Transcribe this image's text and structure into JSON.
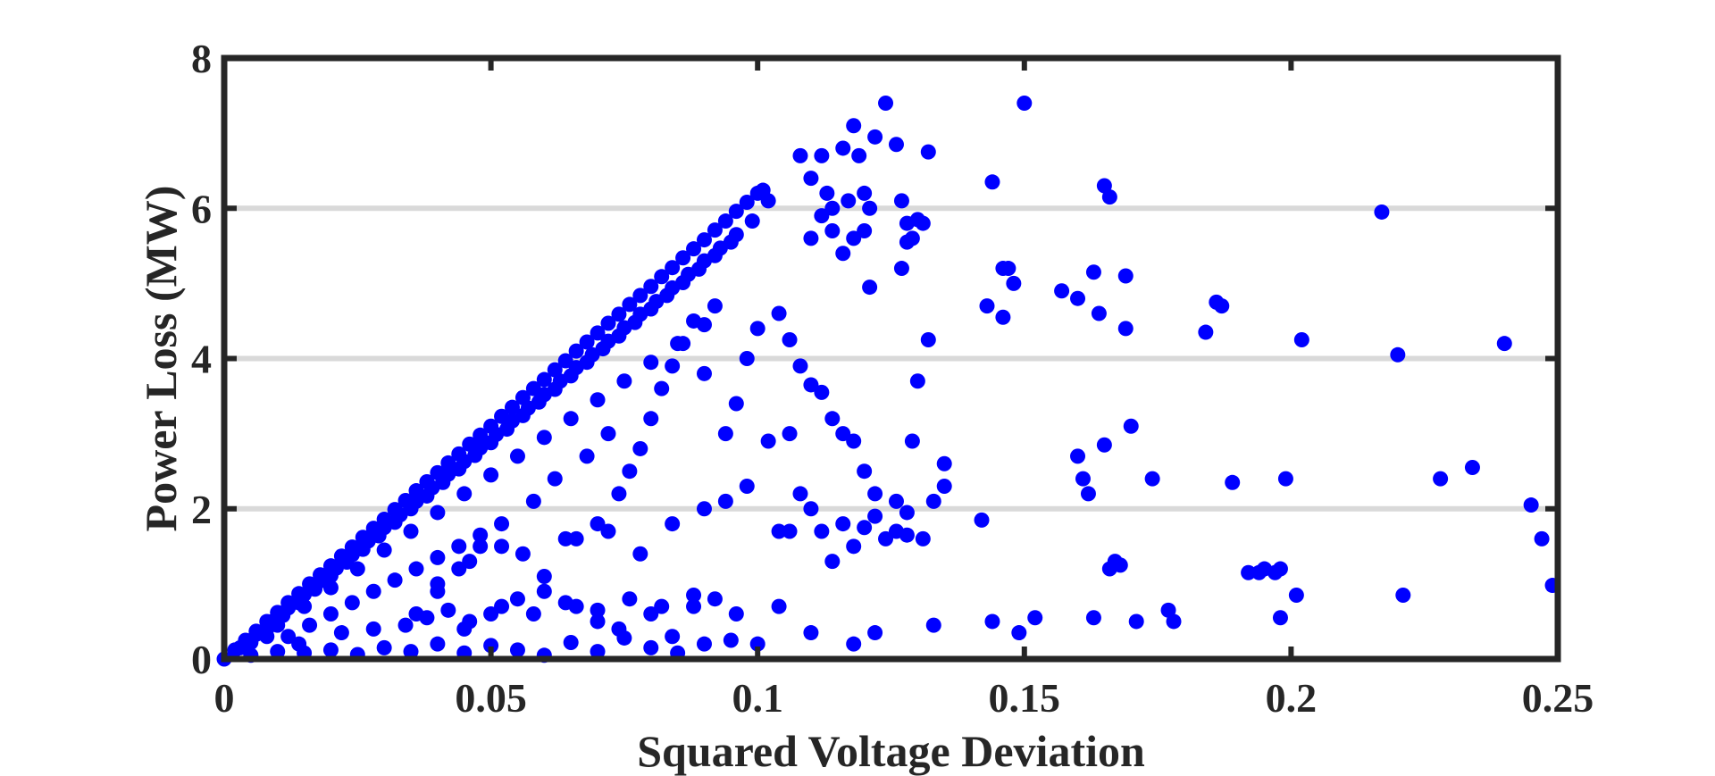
{
  "chart_data": {
    "type": "scatter",
    "title": "",
    "xlabel": "Squared Voltage Deviation",
    "ylabel": "Power Loss (MW)",
    "xlim": [
      0,
      0.25
    ],
    "ylim": [
      0,
      8
    ],
    "xticks": [
      0,
      0.05,
      0.1,
      0.15,
      0.2,
      0.25
    ],
    "xtick_labels": [
      "0",
      "0.05",
      "0.1",
      "0.15",
      "0.2",
      "0.25"
    ],
    "yticks": [
      0,
      2,
      4,
      6,
      8
    ],
    "ytick_labels": [
      "0",
      "2",
      "4",
      "6",
      "8"
    ],
    "grid": "horizontal",
    "legend": "none",
    "marker_color": "#0000ff",
    "grid_color": "#d9d9d9",
    "axis_color": "#262626",
    "series": [
      {
        "values_description_note": "",
        "x": [
          0.0,
          0.002,
          0.004,
          0.006,
          0.008,
          0.01,
          0.012,
          0.014,
          0.016,
          0.018,
          0.02,
          0.022,
          0.024,
          0.026,
          0.028,
          0.03,
          0.032,
          0.034,
          0.036,
          0.038,
          0.04,
          0.042,
          0.044,
          0.046,
          0.048,
          0.05,
          0.052,
          0.054,
          0.056,
          0.058,
          0.06,
          0.062,
          0.064,
          0.066,
          0.068,
          0.07,
          0.072,
          0.074,
          0.076,
          0.078,
          0.08,
          0.082,
          0.084,
          0.086,
          0.088,
          0.09,
          0.092,
          0.094,
          0.096,
          0.098,
          0.1,
          0.101,
          0.102,
          0.003,
          0.006,
          0.009,
          0.012,
          0.015,
          0.018,
          0.021,
          0.024,
          0.027,
          0.03,
          0.033,
          0.036,
          0.039,
          0.042,
          0.045,
          0.048,
          0.051,
          0.054,
          0.057,
          0.06,
          0.063,
          0.066,
          0.069,
          0.072,
          0.075,
          0.078,
          0.081,
          0.084,
          0.087,
          0.09,
          0.093,
          0.096,
          0.099,
          0.005,
          0.008,
          0.011,
          0.014,
          0.017,
          0.02,
          0.023,
          0.026,
          0.029,
          0.032,
          0.035,
          0.038,
          0.041,
          0.044,
          0.047,
          0.05,
          0.053,
          0.056,
          0.059,
          0.062,
          0.065,
          0.068,
          0.071,
          0.074,
          0.077,
          0.08,
          0.083,
          0.086,
          0.089,
          0.092,
          0.095,
          0.01,
          0.015,
          0.02,
          0.025,
          0.03,
          0.035,
          0.04,
          0.045,
          0.05,
          0.055,
          0.06,
          0.065,
          0.07,
          0.075,
          0.08,
          0.085,
          0.09,
          0.012,
          0.016,
          0.02,
          0.024,
          0.028,
          0.032,
          0.036,
          0.04,
          0.044,
          0.048,
          0.005,
          0.01,
          0.015,
          0.02,
          0.025,
          0.03,
          0.035,
          0.04,
          0.045,
          0.05,
          0.055,
          0.06,
          0.065,
          0.07,
          0.075,
          0.08,
          0.085,
          0.09,
          0.095,
          0.008,
          0.014,
          0.022,
          0.028,
          0.034,
          0.038,
          0.042,
          0.046,
          0.052,
          0.058,
          0.064,
          0.07,
          0.076,
          0.082,
          0.088,
          0.036,
          0.04,
          0.044,
          0.048,
          0.052,
          0.056,
          0.058,
          0.062,
          0.064,
          0.068,
          0.07,
          0.072,
          0.074,
          0.076,
          0.078,
          0.08,
          0.082,
          0.084,
          0.086,
          0.088,
          0.09,
          0.092,
          0.094,
          0.096,
          0.098,
          0.1,
          0.04,
          0.046,
          0.052,
          0.06,
          0.066,
          0.072,
          0.078,
          0.084,
          0.09,
          0.094,
          0.098,
          0.102,
          0.106,
          0.045,
          0.05,
          0.055,
          0.06,
          0.066,
          0.07,
          0.074,
          0.08,
          0.084,
          0.088,
          0.092,
          0.096,
          0.1,
          0.108,
          0.11,
          0.112,
          0.113,
          0.114,
          0.116,
          0.117,
          0.118,
          0.119,
          0.12,
          0.121,
          0.122,
          0.124,
          0.126,
          0.127,
          0.128,
          0.129,
          0.13,
          0.132,
          0.11,
          0.112,
          0.114,
          0.116,
          0.118,
          0.12,
          0.121,
          0.127,
          0.128,
          0.131,
          0.104,
          0.106,
          0.108,
          0.11,
          0.112,
          0.114,
          0.116,
          0.118,
          0.12,
          0.122,
          0.126,
          0.128,
          0.129,
          0.131,
          0.133,
          0.135,
          0.135,
          0.104,
          0.106,
          0.108,
          0.11,
          0.112,
          0.114,
          0.116,
          0.118,
          0.12,
          0.122,
          0.124,
          0.126,
          0.128,
          0.13,
          0.132,
          0.104,
          0.11,
          0.118,
          0.122,
          0.133,
          0.144,
          0.146,
          0.147,
          0.148,
          0.143,
          0.146,
          0.15,
          0.142,
          0.144,
          0.149,
          0.152,
          0.157,
          0.16,
          0.163,
          0.164,
          0.165,
          0.166,
          0.169,
          0.169,
          0.17,
          0.16,
          0.161,
          0.162,
          0.165,
          0.166,
          0.167,
          0.168,
          0.174,
          0.163,
          0.171,
          0.177,
          0.178,
          0.184,
          0.186,
          0.187,
          0.189,
          0.192,
          0.194,
          0.195,
          0.197,
          0.198,
          0.199,
          0.201,
          0.202,
          0.198,
          0.217,
          0.22,
          0.221,
          0.228,
          0.234,
          0.24,
          0.245,
          0.247,
          0.249
        ],
        "y": [
          0.0,
          0.12,
          0.25,
          0.37,
          0.5,
          0.62,
          0.75,
          0.87,
          1.0,
          1.12,
          1.24,
          1.37,
          1.49,
          1.62,
          1.74,
          1.86,
          1.99,
          2.11,
          2.24,
          2.36,
          2.48,
          2.61,
          2.73,
          2.86,
          2.98,
          3.1,
          3.23,
          3.35,
          3.48,
          3.6,
          3.72,
          3.85,
          3.97,
          4.1,
          4.22,
          4.34,
          4.47,
          4.59,
          4.72,
          4.84,
          4.96,
          5.09,
          5.21,
          5.34,
          5.46,
          5.58,
          5.71,
          5.83,
          5.96,
          6.08,
          6.2,
          6.24,
          6.1,
          0.15,
          0.33,
          0.5,
          0.68,
          0.86,
          1.04,
          1.21,
          1.39,
          1.57,
          1.75,
          1.92,
          2.1,
          2.28,
          2.46,
          2.63,
          2.81,
          2.99,
          3.17,
          3.34,
          3.52,
          3.7,
          3.88,
          4.05,
          4.23,
          4.41,
          4.59,
          4.76,
          4.94,
          5.12,
          5.3,
          5.47,
          5.65,
          5.83,
          0.22,
          0.4,
          0.58,
          0.75,
          0.93,
          1.11,
          1.29,
          1.46,
          1.64,
          1.82,
          2.0,
          2.17,
          2.35,
          2.53,
          2.71,
          2.88,
          3.06,
          3.24,
          3.42,
          3.59,
          3.77,
          3.95,
          4.13,
          4.3,
          4.48,
          4.66,
          4.84,
          5.01,
          5.19,
          5.37,
          5.55,
          0.45,
          0.7,
          0.95,
          1.2,
          1.45,
          1.7,
          1.95,
          2.2,
          2.45,
          2.7,
          2.95,
          3.2,
          3.45,
          3.7,
          3.95,
          4.2,
          4.45,
          0.3,
          0.45,
          0.6,
          0.75,
          0.9,
          1.05,
          1.2,
          1.35,
          1.5,
          1.65,
          0.05,
          0.1,
          0.08,
          0.12,
          0.06,
          0.15,
          0.1,
          0.2,
          0.08,
          0.18,
          0.12,
          0.05,
          0.22,
          0.1,
          0.28,
          0.15,
          0.08,
          0.2,
          0.25,
          0.3,
          0.2,
          0.35,
          0.4,
          0.45,
          0.55,
          0.65,
          0.5,
          0.7,
          0.6,
          0.75,
          0.65,
          0.8,
          0.7,
          0.85,
          0.6,
          0.9,
          1.2,
          1.5,
          1.8,
          1.4,
          2.1,
          2.4,
          1.6,
          2.7,
          1.8,
          3.0,
          2.2,
          2.5,
          2.8,
          3.2,
          3.6,
          3.9,
          4.2,
          4.5,
          3.8,
          4.7,
          3.0,
          3.4,
          4.0,
          4.4,
          1.0,
          1.3,
          1.5,
          1.1,
          1.6,
          1.7,
          1.4,
          1.8,
          2.0,
          2.1,
          2.3,
          2.9,
          3.0,
          0.4,
          0.6,
          0.8,
          0.9,
          0.7,
          0.5,
          0.4,
          0.6,
          0.3,
          0.7,
          0.8,
          0.6,
          0.2,
          6.7,
          6.4,
          6.7,
          6.2,
          6.0,
          6.8,
          6.1,
          7.1,
          6.7,
          6.2,
          6.0,
          6.95,
          7.4,
          6.85,
          6.1,
          5.8,
          5.6,
          5.85,
          6.75,
          5.6,
          5.9,
          5.7,
          5.4,
          5.6,
          5.7,
          4.95,
          5.2,
          5.55,
          5.8,
          4.6,
          4.25,
          3.9,
          3.65,
          3.55,
          3.2,
          3.0,
          2.9,
          2.5,
          2.2,
          2.1,
          1.95,
          2.9,
          1.6,
          2.1,
          2.6,
          2.3,
          1.7,
          1.7,
          2.2,
          2.0,
          1.7,
          1.3,
          1.8,
          1.5,
          1.75,
          1.9,
          1.6,
          1.7,
          1.65,
          3.7,
          4.25,
          0.7,
          0.35,
          0.2,
          0.35,
          0.45,
          6.35,
          5.2,
          5.2,
          5.0,
          4.7,
          4.55,
          7.4,
          1.85,
          0.5,
          0.35,
          0.55,
          4.9,
          4.8,
          5.15,
          4.6,
          6.3,
          6.15,
          5.1,
          4.4,
          3.1,
          2.7,
          2.4,
          2.2,
          2.85,
          1.2,
          1.3,
          1.25,
          2.4,
          0.55,
          0.5,
          0.65,
          0.5,
          4.35,
          4.75,
          4.7,
          2.35,
          1.15,
          1.15,
          1.2,
          1.15,
          1.2,
          2.4,
          0.85,
          4.25,
          0.55,
          5.95,
          4.05,
          0.85,
          2.4,
          2.55,
          4.2,
          2.05,
          1.6,
          0.98
        ]
      }
    ]
  }
}
